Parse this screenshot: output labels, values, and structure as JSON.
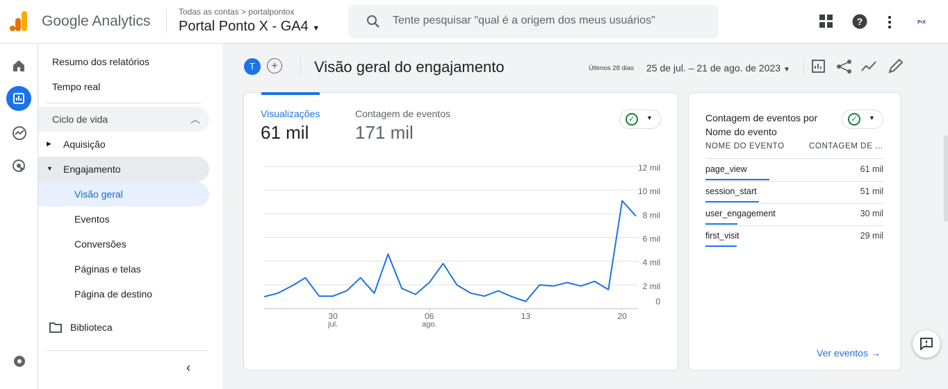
{
  "header": {
    "product": "Google Analytics",
    "breadcrumb": "Todas as contas",
    "account": "portalpontox",
    "property": "Portal Ponto X - GA4",
    "search_placeholder": "Tente pesquisar \"qual é a origem dos meus usuários\""
  },
  "sidebar": {
    "top": [
      "Resumo dos relatórios",
      "Tempo real"
    ],
    "section": "Ciclo de vida",
    "acquisition": "Aquisição",
    "engagement": "Engajamento",
    "engagement_items": [
      "Visão geral",
      "Eventos",
      "Conversões",
      "Páginas e telas",
      "Página de destino"
    ],
    "library": "Biblioteca"
  },
  "toolbar": {
    "avatar": "T",
    "title": "Visão geral do engajamento",
    "range_label": "Últimos 28 dias",
    "date_range": "25 de jul. – 21 de ago. de 2023"
  },
  "metrics": [
    {
      "label": "Visualizações",
      "value": "61 mil"
    },
    {
      "label": "Contagem de eventos",
      "value": "171 mil"
    }
  ],
  "chart_data": {
    "type": "line",
    "color": "#1a73e8",
    "grid": true,
    "categories": [
      null,
      null,
      null,
      null,
      null,
      "30",
      null,
      null,
      null,
      null,
      null,
      null,
      "06",
      null,
      null,
      null,
      null,
      null,
      null,
      "13",
      null,
      null,
      null,
      null,
      null,
      null,
      "20",
      null
    ],
    "category_sublabels": [
      null,
      null,
      null,
      null,
      null,
      "jul.",
      null,
      null,
      null,
      null,
      null,
      null,
      "ago.",
      null,
      null,
      null,
      null,
      null,
      null,
      null,
      null,
      null,
      null,
      null,
      null,
      null,
      null,
      null
    ],
    "values": [
      1000,
      1300,
      1900,
      2600,
      1050,
      1050,
      1500,
      2600,
      1300,
      4600,
      1700,
      1200,
      2200,
      3800,
      2000,
      1300,
      1050,
      1500,
      1000,
      600,
      2000,
      1900,
      2200,
      1900,
      2300,
      1600,
      9100,
      7800
    ],
    "ylim": [
      0,
      12000
    ],
    "yticks": [
      {
        "value": 0,
        "label": "0"
      },
      {
        "value": 2000,
        "label": "2 mil"
      },
      {
        "value": 4000,
        "label": "4 mil"
      },
      {
        "value": 6000,
        "label": "6 mil"
      },
      {
        "value": 8000,
        "label": "8 mil"
      },
      {
        "value": 10000,
        "label": "10 mil"
      },
      {
        "value": 12000,
        "label": "12 mil"
      }
    ]
  },
  "events_card": {
    "title": "Contagem de eventos por Nome do evento",
    "headers": [
      "NOME DO EVENTO",
      "CONTAGEM DE ..."
    ],
    "rows": [
      [
        "page_view",
        "61 mil"
      ],
      [
        "session_start",
        "51 mil"
      ],
      [
        "user_engagement",
        "30 mil"
      ],
      [
        "first_visit",
        "29 mil"
      ]
    ],
    "link": "Ver eventos"
  }
}
